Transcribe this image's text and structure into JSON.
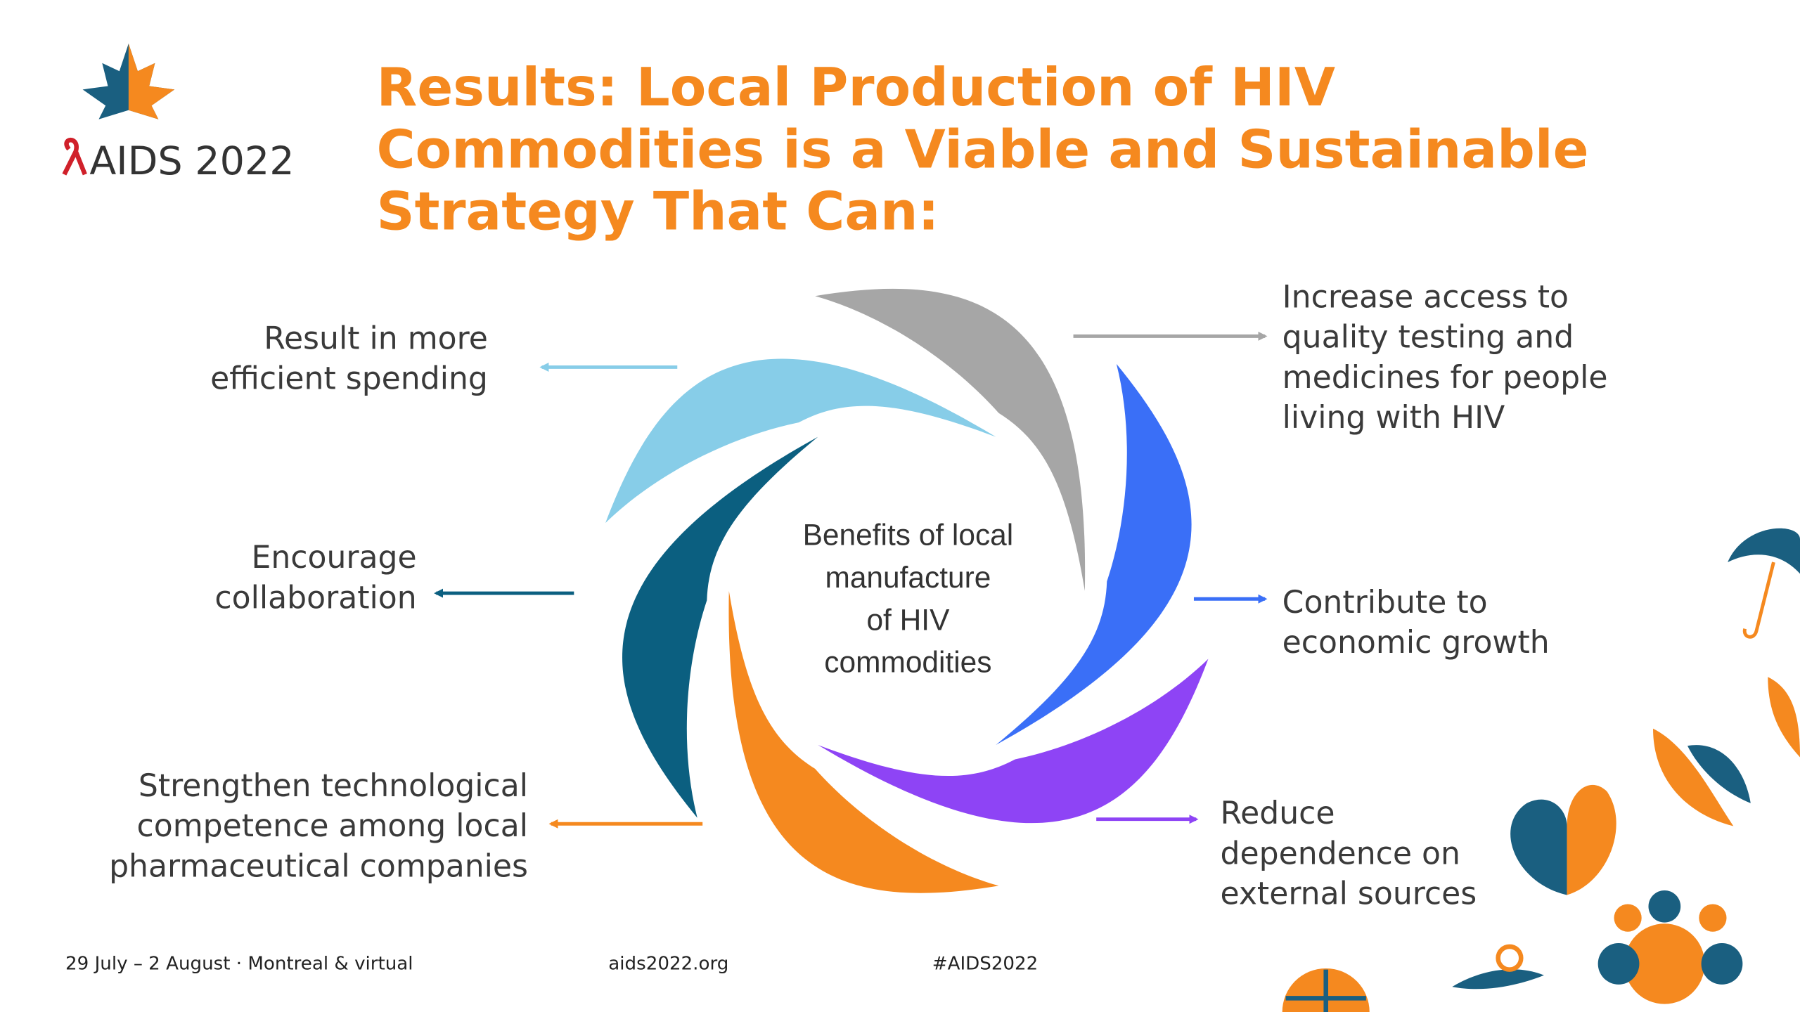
{
  "logo": {
    "text": "AIDS 2022"
  },
  "title": {
    "lines": [
      "Results: Local Production of HIV",
      "Commodities is a Viable and Sustainable",
      "Strategy That Can:"
    ]
  },
  "center": {
    "lines": [
      "Benefits of local",
      "manufacture",
      "of HIV",
      "commodities"
    ]
  },
  "items": [
    {
      "lines": [
        "Increase access to",
        "quality testing and",
        "medicines for people",
        "living with HIV"
      ]
    },
    {
      "lines": [
        "Contribute to",
        "economic growth"
      ]
    },
    {
      "lines": [
        "Reduce",
        "dependence on",
        "external sources"
      ]
    },
    {
      "lines": [
        "Strengthen technological",
        "competence among local",
        "pharmaceutical companies"
      ]
    },
    {
      "lines": [
        "Encourage",
        "collaboration"
      ]
    },
    {
      "lines": [
        "Result in more",
        "efficient spending"
      ]
    }
  ],
  "footer": {
    "date": "29 July – 2 August · Montreal & virtual",
    "site": "aids2022.org",
    "tag": "#AIDS2022"
  }
}
